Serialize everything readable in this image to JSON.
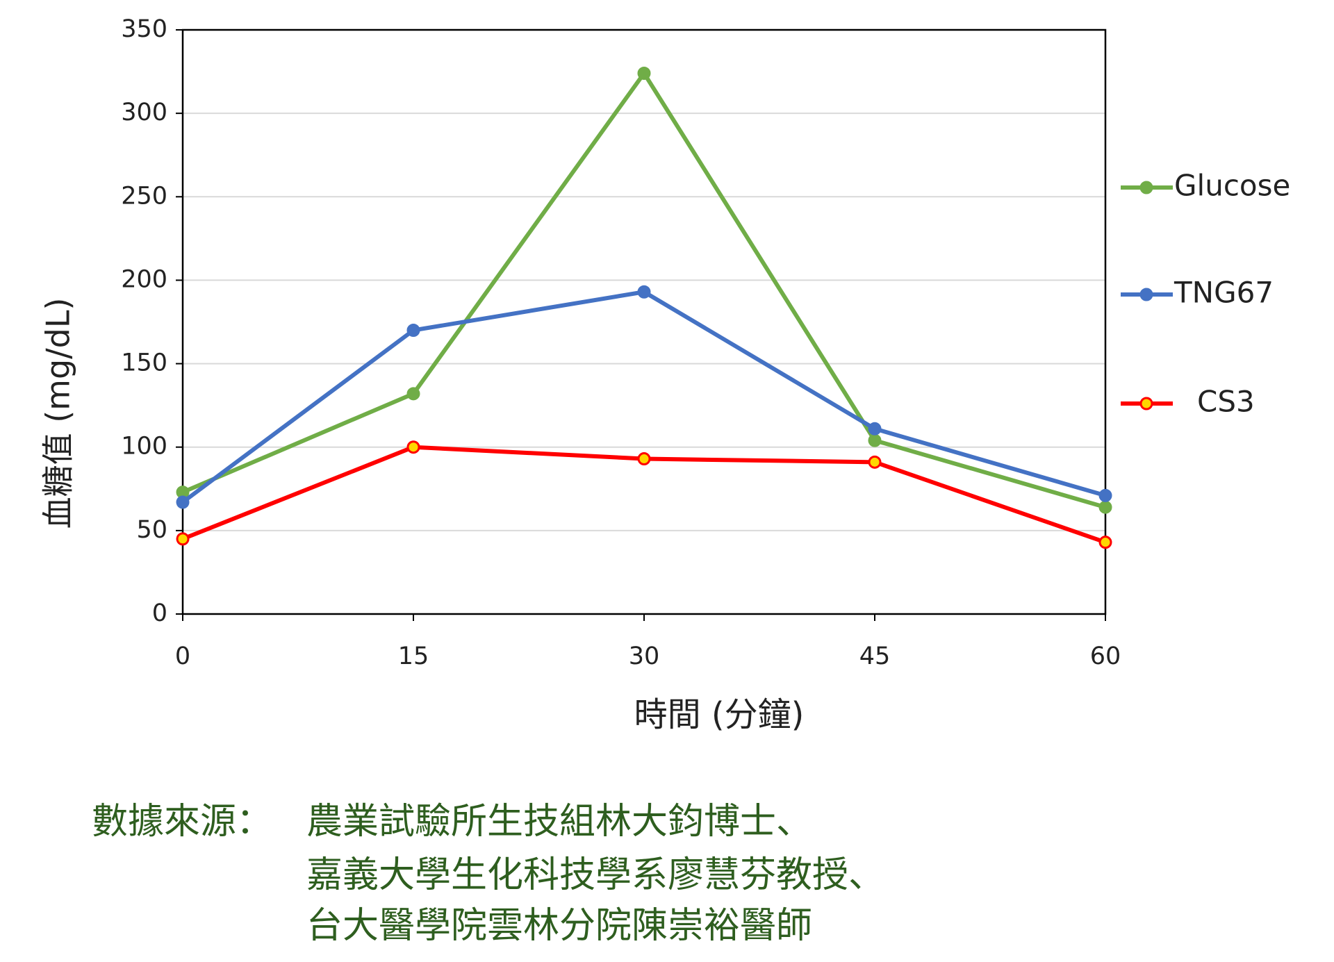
{
  "chart_data": {
    "type": "line",
    "xlabel": "時間 (分鐘)",
    "ylabel": "血糖值 (mg/dL)",
    "x": [
      0,
      15,
      30,
      45,
      60
    ],
    "xlim": [
      0,
      60
    ],
    "xticks": [
      0,
      15,
      30,
      45,
      60
    ],
    "ylim": [
      0,
      350
    ],
    "yticks": [
      0,
      50,
      100,
      150,
      200,
      250,
      300,
      350
    ],
    "grid": true,
    "series": [
      {
        "name": "Glucose",
        "color": "#70ad47",
        "marker_fill": "#70ad47",
        "values": [
          73,
          132,
          324,
          104,
          64
        ]
      },
      {
        "name": "TNG67",
        "color": "#4472c4",
        "marker_fill": "#4472c4",
        "values": [
          67,
          170,
          193,
          111,
          71
        ]
      },
      {
        "name": "CS3",
        "color": "#ff0000",
        "marker_fill": "#ffd700",
        "values": [
          45,
          100,
          93,
          91,
          43
        ]
      }
    ]
  },
  "source": {
    "label": "數據來源：",
    "lines": [
      "農業試驗所生技組林大鈞博士、",
      "嘉義大學生化科技學系廖慧芬教授、",
      "台大醫學院雲林分院陳崇裕醫師"
    ]
  }
}
